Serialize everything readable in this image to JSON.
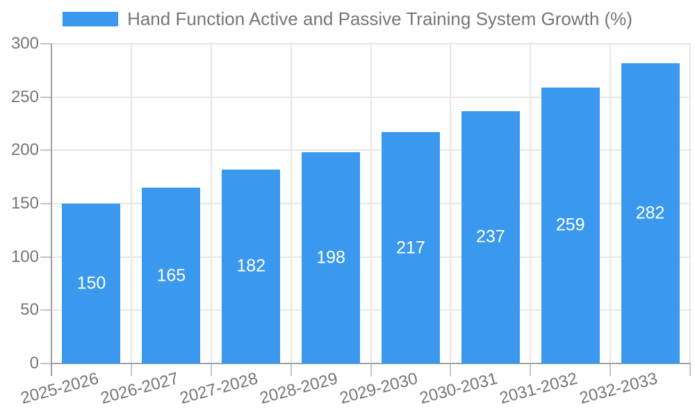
{
  "legend": {
    "label": "Hand Function Active and Passive Training System Growth (%)"
  },
  "colors": {
    "bar": "#3a99ee",
    "grid": "#e6e6e6",
    "axis": "#9e9e9e",
    "tick": "#c4c4c4",
    "text": "#757575",
    "bar_label_text": "#ffffff",
    "background": "#ffffff"
  },
  "chart_data": {
    "type": "bar",
    "title": "Hand Function Active and Passive Training System Growth (%)",
    "series": [
      {
        "name": "Hand Function Active and Passive Training System Growth (%)",
        "values": [
          150,
          165,
          182,
          198,
          217,
          237,
          259,
          282
        ]
      }
    ],
    "categories": [
      "2025-2026",
      "2026-2027",
      "2027-2028",
      "2028-2029",
      "2029-2030",
      "2030-2031",
      "2031-2032",
      "2032-2033"
    ],
    "value_labels": [
      "150",
      "165",
      "182",
      "198",
      "217",
      "237",
      "259",
      "282"
    ],
    "xlabel": "",
    "ylabel": "",
    "ylim": [
      0,
      300
    ],
    "yticks": [
      0,
      50,
      100,
      150,
      200,
      250,
      300
    ],
    "grid": true,
    "legend_position": "top",
    "value_labels_position": "inside-center",
    "x_label_rotation_deg": -15
  }
}
